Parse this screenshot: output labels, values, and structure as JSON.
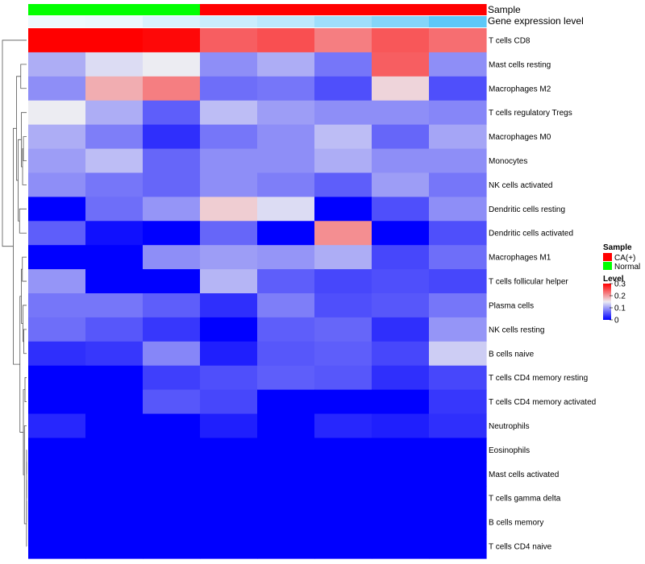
{
  "chart_data": {
    "type": "heatmap",
    "annotation_titles": {
      "sample": "Sample",
      "gene_expression": "Gene expression level"
    },
    "columns": [
      {
        "sample": "Normal",
        "gene_expression": 0.1
      },
      {
        "sample": "Normal",
        "gene_expression": 0.12
      },
      {
        "sample": "Normal",
        "gene_expression": 0.22
      },
      {
        "sample": "CA(+)",
        "gene_expression": 0.3
      },
      {
        "sample": "CA(+)",
        "gene_expression": 0.38
      },
      {
        "sample": "CA(+)",
        "gene_expression": 0.55
      },
      {
        "sample": "CA(+)",
        "gene_expression": 0.7
      },
      {
        "sample": "CA(+)",
        "gene_expression": 0.92
      }
    ],
    "rows": [
      "T cells CD8",
      "Mast cells resting",
      "Macrophages M2",
      "T cells regulatory  Tregs",
      "Macrophages M0",
      "Monocytes",
      "NK cells activated",
      "Dendritic cells resting",
      "Dendritic cells activated",
      "Macrophages M1",
      "T cells follicular helper",
      "Plasma cells",
      "NK cells resting",
      "B cells naive",
      "T cells CD4 memory resting",
      "T cells CD4 memory activated",
      "Neutrophils",
      "Eosinophils",
      "Mast cells activated",
      "T cells gamma delta",
      "B cells memory",
      "T cells CD4 naive"
    ],
    "values": [
      [
        0.3,
        0.3,
        0.295,
        0.24,
        0.25,
        0.22,
        0.245,
        0.23
      ],
      [
        0.11,
        0.14,
        0.15,
        0.09,
        0.11,
        0.075,
        0.24,
        0.09
      ],
      [
        0.09,
        0.19,
        0.22,
        0.07,
        0.075,
        0.05,
        0.165,
        0.05
      ],
      [
        0.15,
        0.11,
        0.06,
        0.12,
        0.1,
        0.09,
        0.09,
        0.085
      ],
      [
        0.11,
        0.08,
        0.03,
        0.075,
        0.09,
        0.12,
        0.065,
        0.105
      ],
      [
        0.1,
        0.12,
        0.065,
        0.09,
        0.09,
        0.11,
        0.09,
        0.09
      ],
      [
        0.09,
        0.075,
        0.065,
        0.09,
        0.08,
        0.06,
        0.1,
        0.075
      ],
      [
        0.0,
        0.07,
        0.095,
        0.17,
        0.14,
        0.0,
        0.05,
        0.09
      ],
      [
        0.06,
        0.01,
        0.0,
        0.065,
        0.0,
        0.21,
        0.0,
        0.05
      ],
      [
        0.0,
        0.0,
        0.09,
        0.1,
        0.095,
        0.11,
        0.045,
        0.07
      ],
      [
        0.095,
        0.0,
        0.0,
        0.115,
        0.06,
        0.045,
        0.05,
        0.045
      ],
      [
        0.075,
        0.075,
        0.06,
        0.03,
        0.08,
        0.05,
        0.055,
        0.075
      ],
      [
        0.07,
        0.055,
        0.035,
        0.0,
        0.06,
        0.065,
        0.03,
        0.095
      ],
      [
        0.03,
        0.035,
        0.085,
        0.02,
        0.055,
        0.06,
        0.045,
        0.13
      ],
      [
        0.0,
        0.0,
        0.04,
        0.05,
        0.06,
        0.055,
        0.03,
        0.045
      ],
      [
        0.0,
        0.0,
        0.055,
        0.045,
        0.0,
        0.0,
        0.0,
        0.035
      ],
      [
        0.025,
        0.0,
        0.0,
        0.02,
        0.0,
        0.025,
        0.02,
        0.03
      ],
      [
        0.0,
        0.0,
        0.0,
        0.0,
        0.0,
        0.0,
        0.0,
        0.0
      ],
      [
        0.0,
        0.0,
        0.0,
        0.0,
        0.0,
        0.0,
        0.0,
        0.0
      ],
      [
        0.0,
        0.0,
        0.0,
        0.0,
        0.0,
        0.0,
        0.0,
        0.0
      ],
      [
        0.0,
        0.0,
        0.0,
        0.0,
        0.0,
        0.0,
        0.0,
        0.0
      ],
      [
        0.0,
        0.0,
        0.0,
        0.0,
        0.0,
        0.0,
        0.0,
        0.0
      ]
    ],
    "color_scale": {
      "min": 0,
      "max": 0.3,
      "stops": [
        "#0000ff",
        "#ececf2",
        "#ff0000"
      ],
      "mid": 0.15
    },
    "gene_scale_stops": [
      "#ffffff",
      "#4fc3f7"
    ],
    "sample_colors": {
      "CA(+)": "#ff0000",
      "Normal": "#00ff00"
    },
    "legend": {
      "sample_title": "Sample",
      "sample_entries": [
        "CA(+)",
        "Normal"
      ],
      "level_title": "Level",
      "level_ticks": [
        "0.3",
        "0.2",
        "0.1",
        "0"
      ],
      "level_tick_values": [
        0.3,
        0.2,
        0.1,
        0
      ]
    },
    "row_dendrogram": {
      "merges": [
        [
          -18,
          -19
        ],
        [
          1,
          -20
        ],
        [
          2,
          -21
        ],
        [
          3,
          -22
        ],
        [
          -15,
          -16
        ],
        [
          -17,
          4
        ],
        [
          5,
          6
        ],
        [
          -13,
          -14
        ],
        [
          -12,
          8
        ],
        [
          -10,
          -11
        ],
        [
          9,
          10
        ],
        [
          11,
          7
        ],
        [
          -5,
          -6
        ],
        [
          -7,
          13
        ],
        [
          -4,
          14
        ],
        [
          -8,
          -9
        ],
        [
          15,
          16
        ],
        [
          -2,
          -3
        ],
        [
          17,
          18
        ],
        [
          19,
          12
        ],
        [
          -1,
          20
        ]
      ],
      "heights": [
        0.001,
        0.002,
        0.003,
        0.004,
        0.08,
        0.11,
        0.16,
        0.14,
        0.18,
        0.21,
        0.26,
        0.33,
        0.16,
        0.2,
        0.26,
        0.35,
        0.42,
        0.29,
        0.5,
        0.66,
        1.2
      ]
    }
  }
}
